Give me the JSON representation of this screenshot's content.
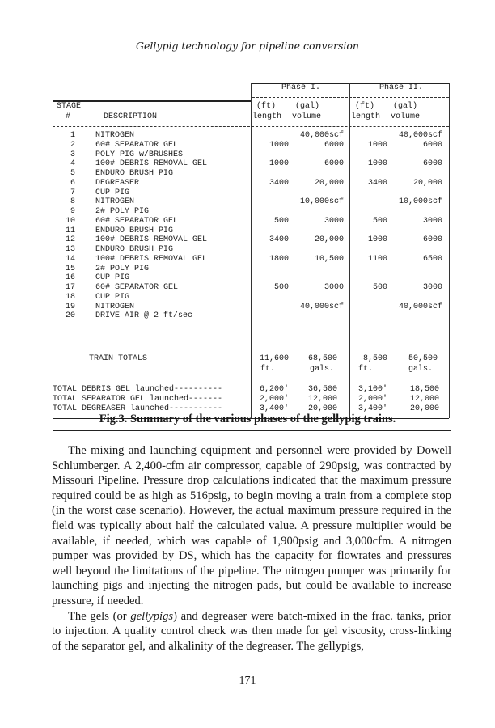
{
  "running_header": "Gellypig technology for pipeline conversion",
  "table": {
    "phase_headers": [
      "Phase I.",
      "Phase II."
    ],
    "stage_label": "STAGE",
    "num_label": "#",
    "desc_label": "DESCRIPTION",
    "unit_headers": [
      "(ft)",
      "(gal)",
      "(ft)",
      "(gal)"
    ],
    "sub_headers": [
      "length",
      "volume",
      "length",
      "volume"
    ],
    "rows": [
      {
        "num": "1",
        "desc": "NITROGEN",
        "l1": "",
        "v1": "40,000scf",
        "l2": "",
        "v2": "40,000scf"
      },
      {
        "num": "2",
        "desc": "60# SEPARATOR GEL",
        "l1": "1000",
        "v1": "6000",
        "l2": "1000",
        "v2": "6000"
      },
      {
        "num": "3",
        "desc": "POLY PIG w/BRUSHES",
        "l1": "",
        "v1": "",
        "l2": "",
        "v2": ""
      },
      {
        "num": "4",
        "desc": "100# DEBRIS REMOVAL GEL",
        "l1": "1000",
        "v1": "6000",
        "l2": "1000",
        "v2": "6000"
      },
      {
        "num": "5",
        "desc": "ENDURO BRUSH PIG",
        "l1": "",
        "v1": "",
        "l2": "",
        "v2": ""
      },
      {
        "num": "6",
        "desc": "DEGREASER",
        "l1": "3400",
        "v1": "20,000",
        "l2": "3400",
        "v2": "20,000"
      },
      {
        "num": "7",
        "desc": "CUP PIG",
        "l1": "",
        "v1": "",
        "l2": "",
        "v2": ""
      },
      {
        "num": "8",
        "desc": "NITROGEN",
        "l1": "",
        "v1": "10,000scf",
        "l2": "",
        "v2": "10,000scf"
      },
      {
        "num": "9",
        "desc": "2# POLY PIG",
        "l1": "",
        "v1": "",
        "l2": "",
        "v2": ""
      },
      {
        "num": "10",
        "desc": "60# SEPARATOR GEL",
        "l1": "500",
        "v1": "3000",
        "l2": "500",
        "v2": "3000"
      },
      {
        "num": "11",
        "desc": "ENDURO BRUSH PIG",
        "l1": "",
        "v1": "",
        "l2": "",
        "v2": ""
      },
      {
        "num": "12",
        "desc": "100# DEBRIS REMOVAL GEL",
        "l1": "3400",
        "v1": "20,000",
        "l2": "1000",
        "v2": "6000"
      },
      {
        "num": "13",
        "desc": "ENDURO BRUSH PIG",
        "l1": "",
        "v1": "",
        "l2": "",
        "v2": ""
      },
      {
        "num": "14",
        "desc": "100# DEBRIS REMOVAL GEL",
        "l1": "1800",
        "v1": "10,500",
        "l2": "1100",
        "v2": "6500"
      },
      {
        "num": "15",
        "desc": "2# POLY PIG",
        "l1": "",
        "v1": "",
        "l2": "",
        "v2": ""
      },
      {
        "num": "16",
        "desc": "CUP PIG",
        "l1": "",
        "v1": "",
        "l2": "",
        "v2": ""
      },
      {
        "num": "17",
        "desc": "60# SEPARATOR GEL",
        "l1": "500",
        "v1": "3000",
        "l2": "500",
        "v2": "3000"
      },
      {
        "num": "18",
        "desc": "CUP PIG",
        "l1": "",
        "v1": "",
        "l2": "",
        "v2": ""
      },
      {
        "num": "19",
        "desc": "NITROGEN",
        "l1": "",
        "v1": "40,000scf",
        "l2": "",
        "v2": "40,000scf"
      },
      {
        "num": "20",
        "desc": "DRIVE AIR @ 2 ft/sec",
        "l1": "",
        "v1": "",
        "l2": "",
        "v2": ""
      }
    ],
    "train_totals": {
      "label": "TRAIN TOTALS",
      "values": [
        "11,600",
        "68,500",
        "8,500",
        "50,500"
      ],
      "units": [
        "ft.",
        "gals.",
        "ft.",
        "gals."
      ]
    },
    "summary_rows": [
      {
        "label": "TOTAL DEBRIS GEL launched----------",
        "l1": "6,200'",
        "v1": "36,500",
        "l2": "3,100'",
        "v2": "18,500"
      },
      {
        "label": "TOTAL SEPARATOR GEL launched-------",
        "l1": "2,000'",
        "v1": "12,000",
        "l2": "2,000'",
        "v2": "12,000"
      },
      {
        "label": "TOTAL DEGREASER launched-----------",
        "l1": "3,400'",
        "v1": "20,000",
        "l2": "3,400'",
        "v2": "20,000"
      }
    ]
  },
  "caption": "Fig.3. Summary of the various phases of the gellypig trains.",
  "body": {
    "p1": "The mixing and launching equipment and personnel were provided by Dowell Schlumberger. A 2,400-cfm air compressor, capable of 290psig, was contracted by Missouri Pipeline. Pressure drop calculations indicated that the maximum pressure required could be as high as 516psig, to begin moving a train from a complete stop (in the worst case scenario). However, the actual maximum pressure required in the field was typically about half the calculated value. A pressure multiplier would be available, if needed, which was capable of 1,900psig and 3,000cfm. A nitrogen pumper was provided by DS, which has the capacity for flowrates and pressures well beyond the limitations of the pipeline. The nitrogen pumper was primarily for launching pigs and injecting the nitrogen pads, but could be available to increase pressure, if needed.",
    "p2_before": "The gels (or ",
    "p2_italic": "gellypigs",
    "p2_after": ") and degreaser were batch-mixed in the frac. tanks, prior to injection. A quality control check was then made for gel viscosity, cross-linking of the separator gel, and alkalinity of the degreaser. The gellypigs,"
  },
  "page_number": "171"
}
